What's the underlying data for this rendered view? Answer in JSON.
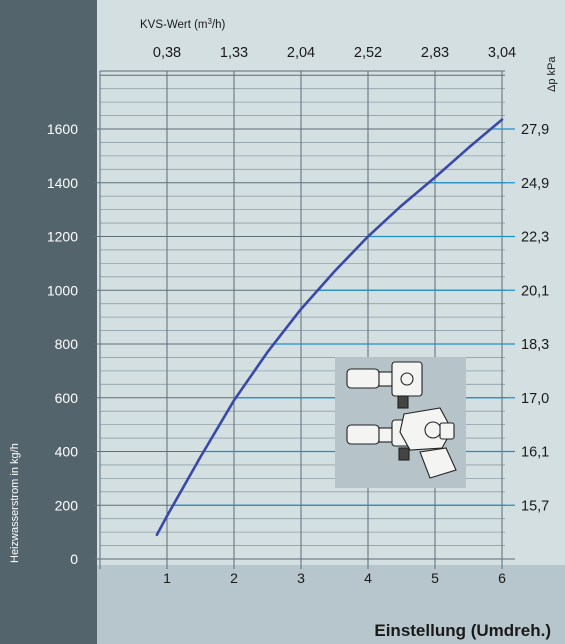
{
  "colors": {
    "left_band": "#54646c",
    "plot_bg": "#d4dfe2",
    "bottom_band": "#b7c6cc",
    "grid_dark": "#5d6e77",
    "grid_light": "#8ea0a8",
    "cyan_line": "#1e90c8",
    "curve": "#3949a8",
    "inset_bg": "#b6c4c9"
  },
  "chart_data": {
    "type": "line",
    "title": "",
    "xlabel": "Einstellung (Umdreh.)",
    "ylabel": "Heizwasserstrom in kg/h",
    "xlim": [
      0,
      7
    ],
    "ylim": [
      0,
      1850
    ],
    "x_ticks": [
      "1",
      "2",
      "3",
      "4",
      "5",
      "6"
    ],
    "y_ticks": [
      "0",
      "200",
      "400",
      "600",
      "800",
      "1000",
      "1200",
      "1400",
      "1600"
    ],
    "top_axis": {
      "label": "KVS-Wert (m³/h)",
      "label_main": "KVS-Wert (m",
      "label_sup": "3",
      "label_end": "/h)",
      "positions": [
        1,
        2,
        3,
        4,
        5,
        6
      ],
      "values": [
        "0,38",
        "1,33",
        "2,04",
        "2,52",
        "2,83",
        "3,04"
      ]
    },
    "right_axis": {
      "label": "Δp kPa",
      "levels": [
        200,
        400,
        600,
        800,
        1000,
        1200,
        1400,
        1600
      ],
      "values": [
        "15,7",
        "16,1",
        "17,0",
        "18,3",
        "20,1",
        "22,3",
        "24,9",
        "27,9"
      ]
    },
    "series": [
      {
        "x": [
          0.85,
          1.0,
          1.5,
          2.0,
          2.5,
          3.0,
          3.5,
          4.0,
          4.5,
          5.0,
          5.5,
          6.0
        ],
        "y": [
          90,
          160,
          380,
          590,
          770,
          930,
          1070,
          1200,
          1315,
          1420,
          1530,
          1635
        ]
      }
    ],
    "grid": true
  }
}
